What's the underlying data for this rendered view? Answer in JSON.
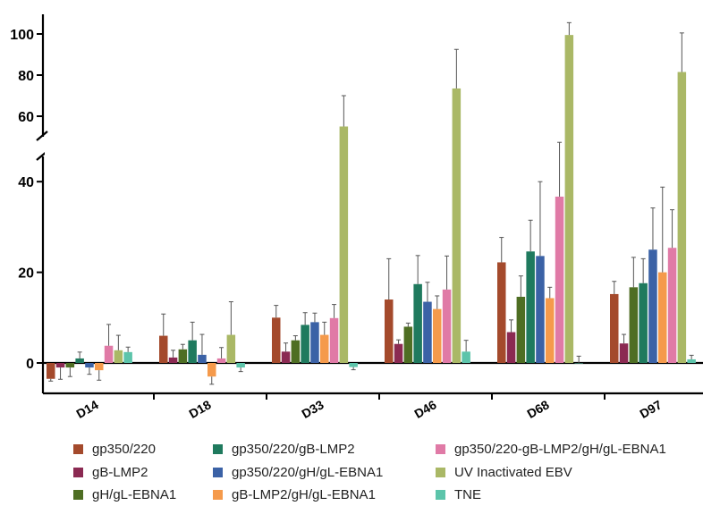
{
  "chart_data": {
    "type": "bar",
    "title": "",
    "xlabel": "",
    "ylabel": "",
    "categories": [
      "D14",
      "D18",
      "D33",
      "D46",
      "D68",
      "D97"
    ],
    "y_axis": {
      "lower_segment_ticks": [
        0,
        20,
        40
      ],
      "upper_segment_ticks": [
        60,
        80,
        100
      ],
      "broken": true,
      "lower_range": [
        -6,
        45
      ],
      "upper_range": [
        52,
        105
      ]
    },
    "legend_placement": "bottom",
    "series": [
      {
        "name": "gp350/220",
        "color": "#a44a2c",
        "values": [
          -3.5,
          6,
          10,
          14,
          22.2,
          15.2
        ],
        "errors": [
          0.5,
          4.8,
          2.7,
          9,
          5.5,
          2.8
        ]
      },
      {
        "name": "gB-LMP2",
        "color": "#8b2a52",
        "values": [
          -1,
          1.2,
          2.5,
          4.2,
          6.8,
          4.3
        ],
        "errors": [
          2.6,
          1.6,
          1.9,
          0.9,
          2.7,
          2
        ]
      },
      {
        "name": "gH/gL-EBNA1",
        "color": "#4e6e23",
        "values": [
          -1,
          3,
          5,
          8,
          14.6,
          16.7
        ],
        "errors": [
          2,
          1.1,
          1,
          0.8,
          4.6,
          6.6
        ]
      },
      {
        "name": "gp350/220/gB-LMP2",
        "color": "#1f7a5e",
        "values": [
          1,
          5,
          8.4,
          17.4,
          24.6,
          17.6
        ],
        "errors": [
          1.4,
          4,
          2.7,
          6.3,
          6.9,
          5.4
        ]
      },
      {
        "name": "gp350/220/gH/gL-EBNA1",
        "color": "#3b62a6",
        "values": [
          -1,
          1.8,
          9,
          13.5,
          23.6,
          25
        ],
        "errors": [
          1.5,
          4.5,
          2,
          4.3,
          16.4,
          9.2
        ]
      },
      {
        "name": "gB-LMP2/gH/gL-EBNA1",
        "color": "#f59a4b",
        "values": [
          -1.6,
          -3,
          6.2,
          11.9,
          14.3,
          20
        ],
        "errors": [
          2.2,
          1.7,
          2.8,
          2.9,
          2.4,
          18.8
        ]
      },
      {
        "name": "gp350/220-gB-LMP2/gH/gL-EBNA1",
        "color": "#e07aa6",
        "values": [
          3.8,
          1,
          9.9,
          16.2,
          36.7,
          25.4
        ],
        "errors": [
          4.7,
          2.4,
          3,
          7.4,
          10.6,
          8.4
        ]
      },
      {
        "name": "UV Inactivated EBV",
        "color": "#aab866",
        "values": [
          2.8,
          6.2,
          55,
          73.5,
          99.5,
          81.5
        ],
        "errors": [
          3.3,
          7.3,
          15,
          19,
          6,
          19
        ]
      },
      {
        "name": "TNE",
        "color": "#5cc4aa",
        "values": [
          2.4,
          -1,
          -0.9,
          2.5,
          0,
          0.8
        ],
        "errors": [
          1.1,
          0.9,
          0.6,
          2.5,
          1.5,
          0.9
        ]
      }
    ]
  }
}
